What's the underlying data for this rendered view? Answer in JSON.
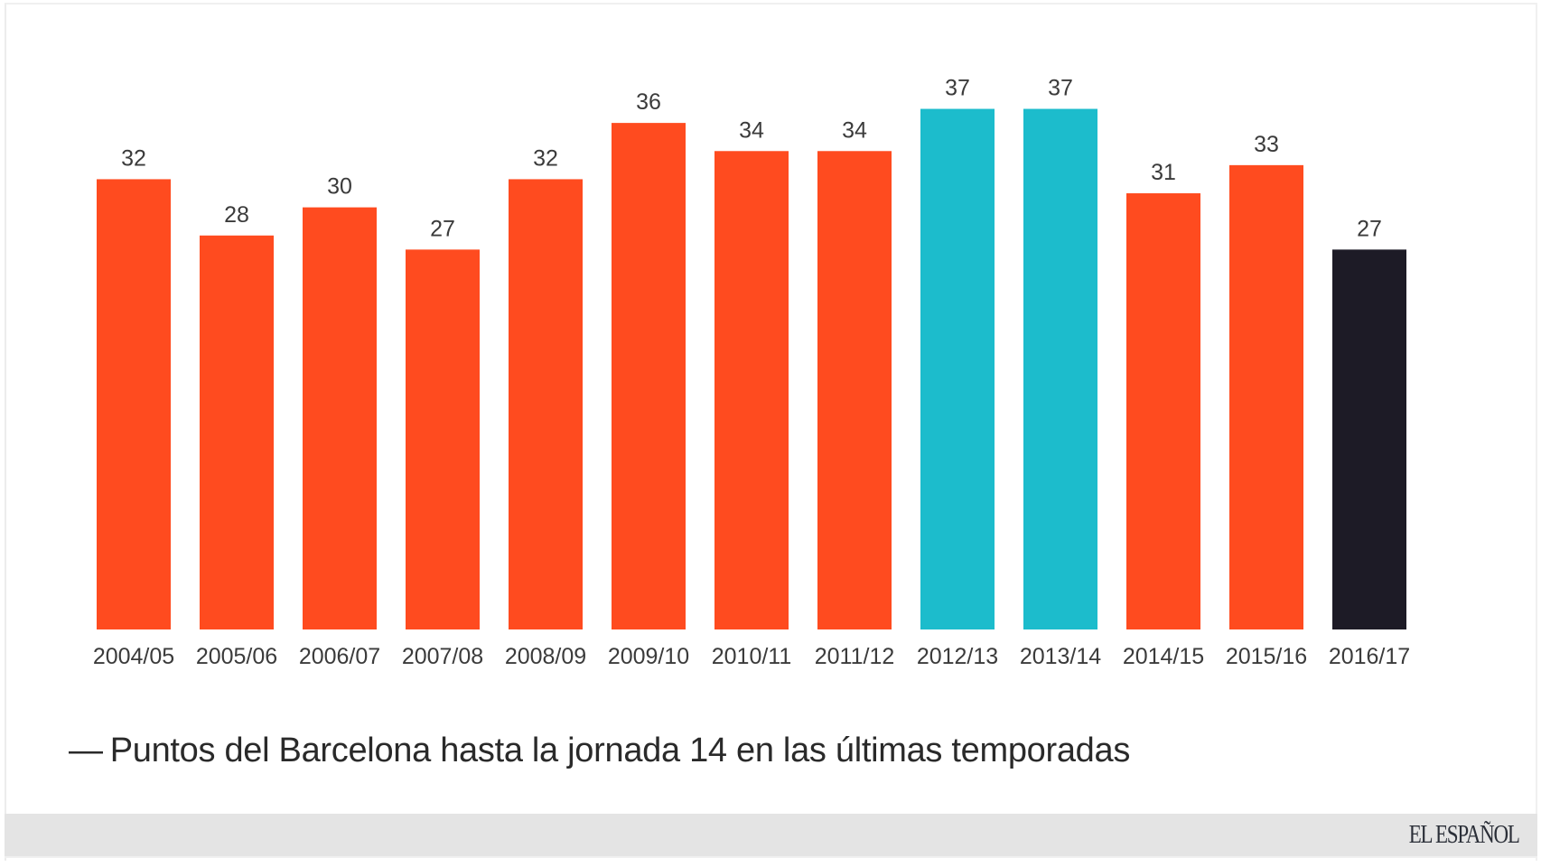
{
  "chart_data": {
    "type": "bar",
    "title": "Puntos del Barcelona hasta la jornada 14 en las últimas temporadas",
    "title_prefix": "—",
    "xlabel": "",
    "ylabel": "",
    "ylim": [
      0,
      37
    ],
    "grid": false,
    "legend": "none",
    "categories": [
      "2004/05",
      "2005/06",
      "2006/07",
      "2007/08",
      "2008/09",
      "2009/10",
      "2010/11",
      "2011/12",
      "2012/13",
      "2013/14",
      "2014/15",
      "2015/16",
      "2016/17"
    ],
    "values": [
      32,
      28,
      30,
      27,
      32,
      36,
      34,
      34,
      37,
      37,
      31,
      33,
      27
    ],
    "bar_colors": [
      "#ff4b1f",
      "#ff4b1f",
      "#ff4b1f",
      "#ff4b1f",
      "#ff4b1f",
      "#ff4b1f",
      "#ff4b1f",
      "#ff4b1f",
      "#1cbccc",
      "#1cbccc",
      "#ff4b1f",
      "#ff4b1f",
      "#1d1b26"
    ],
    "data_labels": [
      "32",
      "28",
      "30",
      "27",
      "32",
      "36",
      "34",
      "34",
      "37",
      "37",
      "31",
      "33",
      "27"
    ]
  },
  "colors": {
    "default_bar": "#ff4b1f",
    "highlight_bar": "#1cbccc",
    "current_bar": "#1d1b26"
  },
  "footer": {
    "brand": "EL ESPAÑOL"
  }
}
